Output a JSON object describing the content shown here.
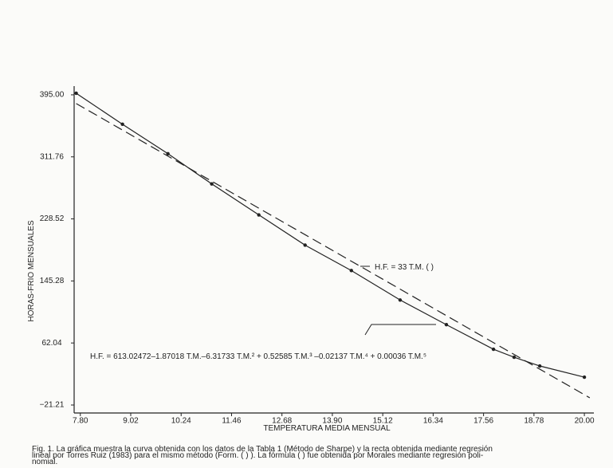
{
  "chart_data": {
    "type": "line",
    "xlabel": "TEMPERATURA MEDIA MENSUAL",
    "ylabel": "HORAS-FRIO MENSUALES",
    "xlim": [
      7.65,
      20.23
    ],
    "ylim": [
      -31.9,
      406.7
    ],
    "xticks": [
      {
        "value": 7.8,
        "label": "7.80"
      },
      {
        "value": 9.02,
        "label": "9.02"
      },
      {
        "value": 10.24,
        "label": "10.24"
      },
      {
        "value": 11.46,
        "label": "11.46"
      },
      {
        "value": 12.68,
        "label": "12.68"
      },
      {
        "value": 13.9,
        "label": "13.90"
      },
      {
        "value": 15.12,
        "label": "15.12"
      },
      {
        "value": 16.34,
        "label": "16.34"
      },
      {
        "value": 17.56,
        "label": "17.56"
      },
      {
        "value": 18.78,
        "label": "18.78"
      },
      {
        "value": 20,
        "label": "20.00"
      }
    ],
    "yticks": [
      {
        "value": -21.21,
        "label": "−21.21"
      },
      {
        "value": 62.04,
        "label": "62.04"
      },
      {
        "value": 145.28,
        "label": "145.28"
      },
      {
        "value": 228.52,
        "label": "228.52"
      },
      {
        "value": 311.76,
        "label": "311.76"
      },
      {
        "value": 395,
        "label": "395.00"
      }
    ],
    "series": [
      {
        "color": "#222222",
        "style": "solid",
        "markers": true,
        "x": [
          7.7,
          8.82,
          9.92,
          10.98,
          12.12,
          13.24,
          14.36,
          15.54,
          16.66,
          17.8,
          18.3,
          18.92,
          20.0
        ],
        "values": [
          397.1,
          355.5,
          316.0,
          275.5,
          233.9,
          193.3,
          159.2,
          119.7,
          86.6,
          53.6,
          42.9,
          31.2,
          16.2
        ]
      },
      {
        "color": "#222222",
        "style": "dashed",
        "markers": false,
        "x": [
          7.7,
          20.13
        ],
        "values": [
          383.3,
          -11.5
        ]
      }
    ],
    "annotations": [
      {
        "text": "H.F. =  33 T.M. (  )"
      },
      {
        "text": "H.F. =  613.02472–1.87018 T.M.–6.31733 T.M.² + 0.52585 T.M.³ –0.02137 T.M.⁴ + 0.00036 T.M.⁵"
      }
    ],
    "caption": [
      "Fig. 1. La gráfica muestra la curva obtenida con los datos de la Tabla 1 (Método de Sharpe) y la recta obtenida mediante regresión",
      "lineal por Torres Ruiz (1983) para el mismo método (Form. ( ) ). La fórmula (   ) fue obtenida por Morales mediante regresión poli-",
      "nomial."
    ]
  }
}
